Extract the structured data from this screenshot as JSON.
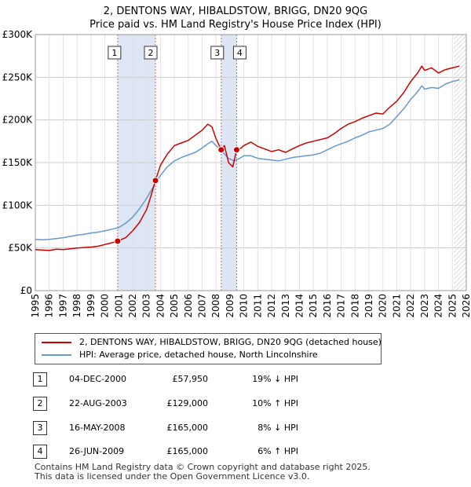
{
  "title_line1": "2, DENTONS WAY, HIBALDSTOW, BRIGG, DN20 9QG",
  "title_line2": "Price paid vs. HM Land Registry's House Price Index (HPI)",
  "colors": {
    "property": "#cc0000",
    "hpi": "#6699cc",
    "band": "#dde6f5",
    "marker_line": "#dd6666",
    "hatch": "#999999"
  },
  "legend": {
    "property_label": "2, DENTONS WAY, HIBALDSTOW, BRIGG, DN20 9QG (detached house)",
    "hpi_label": "HPI: Average price, detached house, North Lincolnshire"
  },
  "sales": [
    {
      "num": "1",
      "date": "04-DEC-2000",
      "price": "£57,950",
      "hpi": "19% ↓ HPI"
    },
    {
      "num": "2",
      "date": "22-AUG-2003",
      "price": "£129,000",
      "hpi": "10% ↑ HPI"
    },
    {
      "num": "3",
      "date": "16-MAY-2008",
      "price": "£165,000",
      "hpi": "8% ↓ HPI"
    },
    {
      "num": "4",
      "date": "26-JUN-2009",
      "price": "£165,000",
      "hpi": "6% ↑ HPI"
    }
  ],
  "footer": {
    "line1": "Contains HM Land Registry data © Crown copyright and database right 2025.",
    "line2": "This data is licensed under the Open Government Licence v3.0."
  },
  "chart_data": {
    "type": "line",
    "title": "Price paid vs. HM Land Registry's House Price Index (HPI)",
    "xlim": [
      1995,
      2026
    ],
    "ylim": [
      0,
      300000
    ],
    "x_ticks": [
      1995,
      1996,
      1997,
      1998,
      1999,
      2000,
      2001,
      2002,
      2003,
      2004,
      2005,
      2006,
      2007,
      2008,
      2009,
      2010,
      2011,
      2012,
      2013,
      2014,
      2015,
      2016,
      2017,
      2018,
      2019,
      2020,
      2021,
      2022,
      2023,
      2024,
      2025,
      2026
    ],
    "y_ticks": [
      {
        "value": 0,
        "label": "£0"
      },
      {
        "value": 50000,
        "label": "£50K"
      },
      {
        "value": 100000,
        "label": "£100K"
      },
      {
        "value": 150000,
        "label": "£150K"
      },
      {
        "value": 200000,
        "label": "£200K"
      },
      {
        "value": 250000,
        "label": "£250K"
      },
      {
        "value": 300000,
        "label": "£300K"
      }
    ],
    "grid": true,
    "shaded_bands": [
      [
        2000.92,
        2003.64
      ],
      [
        2008.37,
        2009.48
      ]
    ],
    "forecast_from": 2025.1,
    "sale_markers": [
      {
        "label": "1",
        "x": 2000.92,
        "y": 57950
      },
      {
        "label": "2",
        "x": 2003.64,
        "y": 129000
      },
      {
        "label": "3",
        "x": 2008.37,
        "y": 165000
      },
      {
        "label": "4",
        "x": 2009.48,
        "y": 165000
      }
    ],
    "series": [
      {
        "name": "2, DENTONS WAY, HIBALDSTOW, BRIGG, DN20 9QG (detached house)",
        "color": "#cc0000",
        "x": [
          1995,
          1995.5,
          1996,
          1996.5,
          1997,
          1997.5,
          1998,
          1998.5,
          1999,
          1999.5,
          2000,
          2000.5,
          2000.92,
          2001.5,
          2002,
          2002.5,
          2003,
          2003.3,
          2003.64,
          2004,
          2004.5,
          2005,
          2005.5,
          2006,
          2006.5,
          2007,
          2007.4,
          2007.7,
          2008,
          2008.37,
          2008.6,
          2008.9,
          2009.2,
          2009.48,
          2009.8,
          2010,
          2010.5,
          2011,
          2011.5,
          2012,
          2012.5,
          2013,
          2013.5,
          2014,
          2014.5,
          2015,
          2015.5,
          2016,
          2016.5,
          2017,
          2017.5,
          2018,
          2018.5,
          2019,
          2019.5,
          2020,
          2020.5,
          2021,
          2021.5,
          2022,
          2022.5,
          2022.8,
          2023,
          2023.5,
          2024,
          2024.5,
          2025,
          2025.5
        ],
        "y": [
          48000,
          47500,
          47000,
          48500,
          48000,
          49000,
          50000,
          50500,
          51000,
          52000,
          54000,
          56000,
          57950,
          62000,
          70000,
          80000,
          95000,
          110000,
          129000,
          147000,
          160000,
          170000,
          173000,
          176000,
          182000,
          188000,
          195000,
          192000,
          178000,
          165000,
          170000,
          150000,
          145000,
          165000,
          167000,
          170000,
          174000,
          169000,
          166000,
          163000,
          165000,
          162000,
          166000,
          170000,
          173000,
          175000,
          177000,
          179000,
          184000,
          190000,
          195000,
          198000,
          202000,
          205000,
          208000,
          207000,
          215000,
          222000,
          232000,
          245000,
          255000,
          263000,
          258000,
          261000,
          255000,
          259000,
          261000,
          263000
        ]
      },
      {
        "name": "HPI: Average price, detached house, North Lincolnshire",
        "color": "#6699cc",
        "x": [
          1995,
          1995.5,
          1996,
          1996.5,
          1997,
          1997.5,
          1998,
          1998.5,
          1999,
          1999.5,
          2000,
          2000.5,
          2001,
          2001.5,
          2002,
          2002.5,
          2003,
          2003.5,
          2004,
          2004.5,
          2005,
          2005.5,
          2006,
          2006.5,
          2007,
          2007.4,
          2007.7,
          2008,
          2008.5,
          2008.9,
          2009.3,
          2009.7,
          2010,
          2010.5,
          2011,
          2011.5,
          2012,
          2012.5,
          2013,
          2013.5,
          2014,
          2014.5,
          2015,
          2015.5,
          2016,
          2016.5,
          2017,
          2017.5,
          2018,
          2018.5,
          2019,
          2019.5,
          2020,
          2020.5,
          2021,
          2021.5,
          2022,
          2022.5,
          2022.8,
          2023,
          2023.5,
          2024,
          2024.5,
          2025,
          2025.5
        ],
        "y": [
          60000,
          59500,
          60000,
          61000,
          62000,
          63500,
          65000,
          66000,
          67500,
          68500,
          70000,
          72000,
          74000,
          79000,
          86000,
          96000,
          108000,
          122000,
          135000,
          145000,
          152000,
          156000,
          159000,
          162000,
          167000,
          172000,
          175000,
          170000,
          162000,
          155000,
          152000,
          155000,
          158000,
          158000,
          155000,
          154000,
          153000,
          152000,
          154000,
          156000,
          157000,
          158000,
          159000,
          161000,
          165000,
          169000,
          172000,
          175000,
          179000,
          182000,
          186000,
          188000,
          190000,
          195000,
          204000,
          213000,
          224000,
          233000,
          240000,
          236000,
          238000,
          237000,
          242000,
          245000,
          247000
        ]
      }
    ]
  }
}
